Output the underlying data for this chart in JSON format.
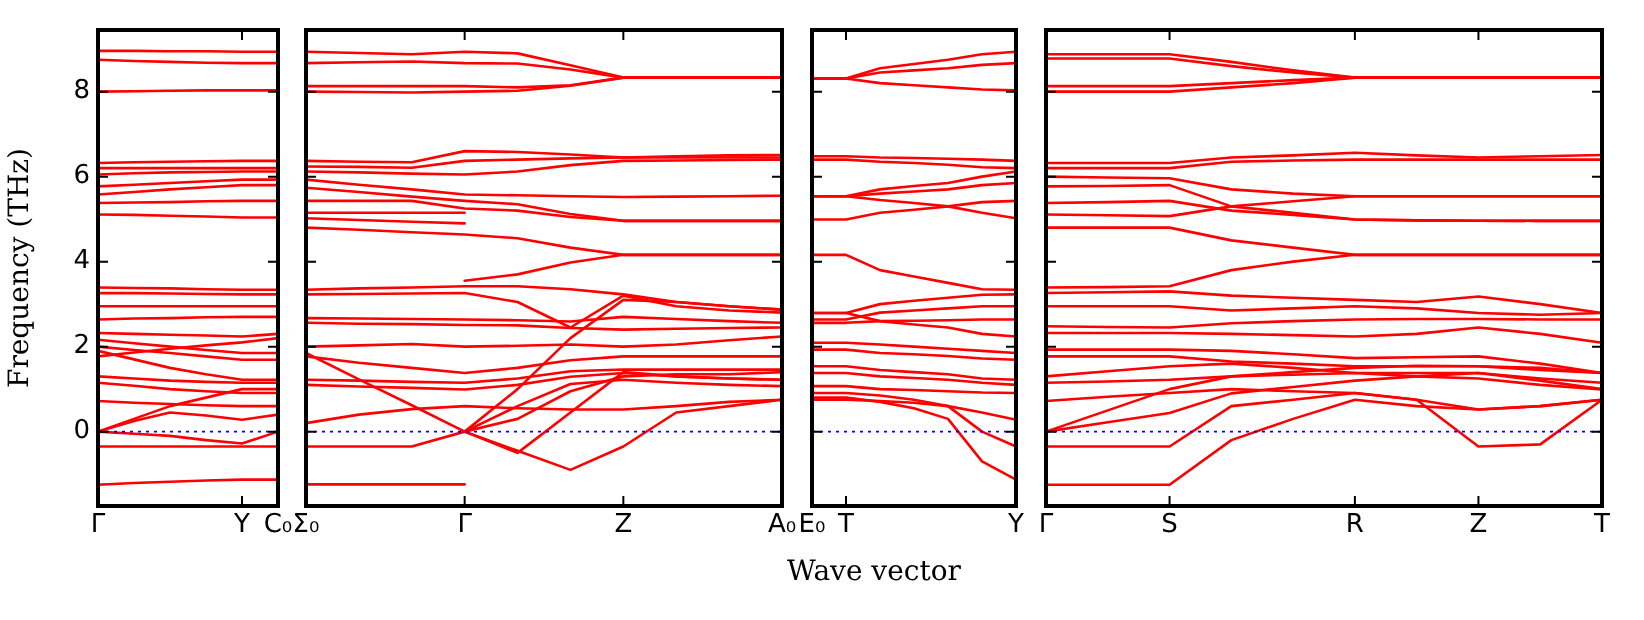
{
  "chart_data": [
    {
      "type": "line",
      "ylabel": "Frequency (THz)",
      "categories": [
        "Γ",
        null,
        null,
        null,
        "Y",
        "C₀"
      ],
      "ylim": [
        -1.75,
        9.45
      ],
      "yticks": [
        0,
        2,
        4,
        6,
        8
      ],
      "grid": false,
      "legend": false,
      "marker": "none",
      "line_style": "solid",
      "ref_lines": [
        {
          "axis": "y",
          "value": 0,
          "color": "#0000ff",
          "line_style": "dotted"
        }
      ],
      "series": [
        {
          "color": "#ff0000",
          "values": [
            8.96,
            8.96,
            8.95,
            8.95,
            8.94,
            8.94
          ]
        },
        {
          "color": "#ff0000",
          "values": [
            8.75,
            8.72,
            8.7,
            8.68,
            8.67,
            8.67
          ]
        },
        {
          "color": "#ff0000",
          "values": [
            8.0,
            8.01,
            8.02,
            8.03,
            8.03,
            8.03
          ]
        },
        {
          "color": "#ff0000",
          "values": [
            6.32,
            6.34,
            6.35,
            6.36,
            6.37,
            6.37
          ]
        },
        {
          "color": "#ff0000",
          "values": [
            6.2,
            6.2,
            6.2,
            6.2,
            6.2,
            6.2
          ]
        },
        {
          "color": "#ff0000",
          "values": [
            6.05,
            6.08,
            6.1,
            6.11,
            6.12,
            6.12
          ]
        },
        {
          "color": "#ff0000",
          "values": [
            5.77,
            5.81,
            5.85,
            5.89,
            5.93,
            5.93
          ]
        },
        {
          "color": "#ff0000",
          "values": [
            5.58,
            5.64,
            5.7,
            5.75,
            5.8,
            5.8
          ]
        },
        {
          "color": "#ff0000",
          "values": [
            5.38,
            5.39,
            5.4,
            5.42,
            5.43,
            5.43
          ]
        },
        {
          "color": "#ff0000",
          "values": [
            5.11,
            5.1,
            5.08,
            5.06,
            5.04,
            5.04
          ]
        },
        {
          "color": "#ff0000",
          "values": [
            3.39,
            3.38,
            3.37,
            3.35,
            3.34,
            3.34
          ]
        },
        {
          "color": "#ff0000",
          "values": [
            3.26,
            3.26,
            3.25,
            3.24,
            3.23,
            3.23
          ]
        },
        {
          "color": "#ff0000",
          "values": [
            2.95,
            2.95,
            2.95,
            2.95,
            2.95,
            2.95
          ]
        },
        {
          "color": "#ff0000",
          "values": [
            2.64,
            2.66,
            2.67,
            2.69,
            2.7,
            2.7
          ]
        },
        {
          "color": "#ff0000",
          "values": [
            2.32,
            2.3,
            2.28,
            2.26,
            2.24,
            2.3
          ]
        },
        {
          "color": "#ff0000",
          "values": [
            2.16,
            2.08,
            2.0,
            1.92,
            1.85,
            1.85
          ]
        },
        {
          "color": "#ff0000",
          "values": [
            2.0,
            1.92,
            1.85,
            1.77,
            1.69,
            1.69
          ]
        },
        {
          "color": "#ff0000",
          "values": [
            1.9,
            1.7,
            1.5,
            1.35,
            1.22,
            1.22
          ]
        },
        {
          "color": "#ff0000",
          "values": [
            1.77,
            1.86,
            1.95,
            2.03,
            2.1,
            2.2
          ]
        },
        {
          "color": "#ff0000",
          "values": [
            1.3,
            1.25,
            1.2,
            1.17,
            1.15,
            1.15
          ]
        },
        {
          "color": "#ff0000",
          "values": [
            1.15,
            1.08,
            1.0,
            0.95,
            0.91,
            0.91
          ]
        },
        {
          "color": "#ff0000",
          "values": [
            0.72,
            0.68,
            0.65,
            0.62,
            0.6,
            0.6
          ]
        },
        {
          "color": "#ff0000",
          "values": [
            0,
            0.3,
            0.6,
            0.8,
            1.0,
            1.0
          ]
        },
        {
          "color": "#ff0000",
          "values": [
            0,
            0.25,
            0.45,
            0.38,
            0.28,
            0.4
          ]
        },
        {
          "color": "#ff0000",
          "values": [
            0,
            -0.05,
            -0.1,
            -0.2,
            -0.28,
            0
          ]
        },
        {
          "color": "#ff0000",
          "values": [
            -0.35,
            -0.35,
            -0.35,
            -0.35,
            -0.35,
            -0.35
          ]
        },
        {
          "color": "#ff0000",
          "values": [
            -1.25,
            -1.21,
            -1.18,
            -1.15,
            -1.13,
            -1.13
          ]
        }
      ]
    },
    {
      "type": "line",
      "tick_labels": "x",
      "categories": [
        "Σ₀",
        null,
        null,
        "Γ",
        null,
        null,
        "Z",
        null,
        null,
        "A₀"
      ],
      "ylim": [
        -1.75,
        9.45
      ],
      "yticks": [
        0,
        2,
        4,
        6,
        8
      ],
      "grid": false,
      "legend": false,
      "marker": "none",
      "line_style": "solid",
      "ref_lines": [
        {
          "axis": "y",
          "value": 0,
          "color": "#0000ff",
          "line_style": "dotted"
        }
      ],
      "series": [
        {
          "color": "#ff0000",
          "values": [
            8.94,
            8.91,
            8.88,
            8.94,
            8.9,
            8.62,
            8.33,
            8.33,
            8.33,
            8.33
          ]
        },
        {
          "color": "#ff0000",
          "values": [
            8.67,
            8.69,
            8.71,
            8.67,
            8.66,
            8.52,
            8.33,
            8.33,
            8.33,
            8.33
          ]
        },
        {
          "color": "#ff0000",
          "values": [
            8.13,
            8.13,
            8.13,
            8.13,
            8.1,
            8.15,
            8.33,
            8.33,
            8.33,
            8.33
          ]
        },
        {
          "color": "#ff0000",
          "values": [
            8.0,
            7.99,
            7.98,
            8.0,
            8.02,
            8.14,
            8.33,
            8.33,
            8.33,
            8.33
          ]
        },
        {
          "color": "#ff0000",
          "values": [
            6.37,
            6.35,
            6.34,
            6.6,
            6.58,
            6.52,
            6.45,
            6.48,
            6.5,
            6.51
          ]
        },
        {
          "color": "#ff0000",
          "values": [
            6.24,
            6.23,
            6.21,
            6.37,
            6.4,
            6.43,
            6.45,
            6.45,
            6.45,
            6.45
          ]
        },
        {
          "color": "#ff0000",
          "values": [
            6.12,
            6.1,
            6.07,
            6.05,
            6.12,
            6.27,
            6.37,
            6.38,
            6.39,
            6.4
          ]
        },
        {
          "color": "#ff0000",
          "values": [
            5.93,
            5.81,
            5.7,
            5.58,
            5.56,
            5.54,
            5.52,
            5.53,
            5.54,
            5.55
          ]
        },
        {
          "color": "#ff0000",
          "values": [
            5.74,
            5.64,
            5.53,
            5.43,
            5.35,
            5.12,
            4.96,
            4.96,
            4.96,
            4.96
          ]
        },
        {
          "color": "#ff0000",
          "values": [
            5.43,
            5.43,
            5.43,
            5.25,
            5.2,
            5.05,
            4.96,
            4.96,
            4.96,
            4.96
          ]
        },
        {
          "color": "#ff0000",
          "values": [
            5.15,
            5.15,
            5.15,
            5.15,
            null,
            null,
            null,
            null,
            null,
            null
          ]
        },
        {
          "color": "#ff0000",
          "values": [
            5.02,
            4.98,
            4.94,
            4.9,
            null,
            null,
            null,
            null,
            null,
            null
          ]
        },
        {
          "color": "#ff0000",
          "values": [
            4.8,
            4.75,
            4.69,
            4.64,
            4.55,
            4.33,
            4.16,
            4.16,
            4.16,
            4.16
          ]
        },
        {
          "color": "#ff0000",
          "values": [
            null,
            null,
            null,
            3.55,
            3.7,
            3.98,
            4.16,
            4.16,
            4.16,
            4.16
          ]
        },
        {
          "color": "#ff0000",
          "values": [
            3.34,
            3.37,
            3.39,
            3.42,
            3.42,
            3.35,
            3.23,
            3.05,
            2.95,
            2.87
          ]
        },
        {
          "color": "#ff0000",
          "values": [
            3.23,
            3.24,
            3.25,
            3.26,
            3.05,
            2.45,
            3.2,
            2.95,
            2.85,
            2.8
          ]
        },
        {
          "color": "#ff0000",
          "values": [
            2.67,
            2.66,
            2.65,
            2.64,
            2.62,
            2.59,
            2.7,
            2.65,
            2.6,
            2.56
          ]
        },
        {
          "color": "#ff0000",
          "values": [
            2.56,
            2.54,
            2.53,
            2.51,
            2.5,
            2.44,
            2.4,
            2.42,
            2.44,
            2.45
          ]
        },
        {
          "color": "#ff0000",
          "values": [
            2.0,
            2.03,
            2.06,
            2.0,
            2.02,
            2.05,
            2.0,
            2.05,
            2.15,
            2.24
          ]
        },
        {
          "color": "#ff0000",
          "values": [
            1.85,
            1.23,
            0.62,
            0,
            1.0,
            2.2,
            3.1,
            3.05,
            2.95,
            2.87
          ]
        },
        {
          "color": "#ff0000",
          "values": [
            1.77,
            1.62,
            1.5,
            1.38,
            1.5,
            1.68,
            1.77,
            1.77,
            1.77,
            1.77
          ]
        },
        {
          "color": "#ff0000",
          "values": [
            1.22,
            1.2,
            1.17,
            1.15,
            1.25,
            1.42,
            1.46,
            1.46,
            1.46,
            1.46
          ]
        },
        {
          "color": "#ff0000",
          "values": [
            1.1,
            1.06,
            1.03,
            0.99,
            1.1,
            1.29,
            1.38,
            1.3,
            1.25,
            1.22
          ]
        },
        {
          "color": "#ff0000",
          "values": [
            0.2,
            0.4,
            0.53,
            0.6,
            0.55,
            0.52,
            0.52,
            0.6,
            0.7,
            0.75
          ]
        },
        {
          "color": "#ff0000",
          "values": [
            -0.35,
            -0.35,
            -0.35,
            0,
            -0.5,
            0.45,
            1.4,
            1.3,
            1.25,
            1.22
          ]
        },
        {
          "color": "#ff0000",
          "values": [
            -1.24,
            -1.24,
            -1.24,
            -1.24,
            null,
            null,
            null,
            null,
            null,
            null
          ]
        },
        {
          "color": "#ff0000",
          "values": [
            null,
            null,
            null,
            0,
            0.6,
            1.12,
            1.22,
            1.15,
            1.1,
            1.07
          ]
        },
        {
          "color": "#ff0000",
          "values": [
            null,
            null,
            null,
            0,
            -0.45,
            -0.9,
            -0.35,
            0.45,
            0.6,
            0.75
          ]
        },
        {
          "color": "#ff0000",
          "values": [
            null,
            null,
            null,
            0,
            0.3,
            0.95,
            1.3,
            1.35,
            1.35,
            1.4
          ]
        }
      ]
    },
    {
      "type": "line",
      "tick_labels": "x",
      "xlabel": "Wave vector",
      "categories": [
        "E₀",
        "T",
        null,
        null,
        null,
        null,
        "Y"
      ],
      "ylim": [
        -1.75,
        9.45
      ],
      "yticks": [
        0,
        2,
        4,
        6,
        8
      ],
      "grid": false,
      "legend": false,
      "marker": "none",
      "line_style": "solid",
      "ref_lines": [
        {
          "axis": "y",
          "value": 0,
          "color": "#0000ff",
          "line_style": "dotted"
        }
      ],
      "series": [
        {
          "color": "#ff0000",
          "values": [
            8.31,
            8.31,
            8.55,
            8.65,
            8.75,
            8.88,
            8.94
          ]
        },
        {
          "color": "#ff0000",
          "values": [
            8.31,
            8.31,
            8.45,
            8.5,
            8.55,
            8.63,
            8.67
          ]
        },
        {
          "color": "#ff0000",
          "values": [
            8.31,
            8.31,
            8.2,
            8.15,
            8.1,
            8.05,
            8.03
          ]
        },
        {
          "color": "#ff0000",
          "values": [
            6.48,
            6.48,
            6.45,
            6.44,
            6.42,
            6.4,
            6.37
          ]
        },
        {
          "color": "#ff0000",
          "values": [
            6.4,
            6.4,
            6.35,
            6.32,
            6.28,
            6.22,
            6.2
          ]
        },
        {
          "color": "#ff0000",
          "values": [
            5.54,
            5.54,
            5.7,
            5.78,
            5.85,
            6.0,
            6.12
          ]
        },
        {
          "color": "#ff0000",
          "values": [
            5.54,
            5.54,
            5.6,
            5.65,
            5.7,
            5.8,
            5.85
          ]
        },
        {
          "color": "#ff0000",
          "values": [
            4.99,
            4.99,
            5.15,
            5.22,
            5.3,
            5.4,
            5.43
          ]
        },
        {
          "color": "#ff0000",
          "values": [
            5.54,
            5.54,
            5.45,
            5.38,
            5.3,
            5.15,
            5.02
          ]
        },
        {
          "color": "#ff0000",
          "values": [
            4.16,
            4.16,
            3.8,
            3.65,
            3.5,
            3.35,
            3.34
          ]
        },
        {
          "color": "#ff0000",
          "values": [
            2.79,
            2.79,
            3.0,
            3.08,
            3.15,
            3.22,
            3.23
          ]
        },
        {
          "color": "#ff0000",
          "values": [
            2.64,
            2.64,
            2.8,
            2.85,
            2.9,
            2.95,
            2.95
          ]
        },
        {
          "color": "#ff0000",
          "values": [
            2.56,
            2.56,
            2.6,
            2.61,
            2.62,
            2.64,
            2.64
          ]
        },
        {
          "color": "#ff0000",
          "values": [
            2.79,
            2.79,
            2.6,
            2.52,
            2.45,
            2.3,
            2.24
          ]
        },
        {
          "color": "#ff0000",
          "values": [
            2.09,
            2.09,
            2.05,
            2.0,
            1.95,
            1.9,
            1.85
          ]
        },
        {
          "color": "#ff0000",
          "values": [
            1.93,
            1.93,
            1.85,
            1.82,
            1.78,
            1.72,
            1.69
          ]
        },
        {
          "color": "#ff0000",
          "values": [
            1.54,
            1.54,
            1.45,
            1.4,
            1.35,
            1.25,
            1.22
          ]
        },
        {
          "color": "#ff0000",
          "values": [
            1.38,
            1.38,
            1.3,
            1.26,
            1.22,
            1.15,
            1.1
          ]
        },
        {
          "color": "#ff0000",
          "values": [
            1.07,
            1.07,
            1.0,
            0.98,
            0.95,
            0.92,
            0.91
          ]
        },
        {
          "color": "#ff0000",
          "values": [
            0.91,
            0.91,
            0.85,
            0.75,
            0.6,
            0.45,
            0.28
          ]
        },
        {
          "color": "#ff0000",
          "values": [
            0.75,
            0.75,
            0.72,
            0.68,
            0.6,
            0.0,
            -0.35
          ]
        },
        {
          "color": "#ff0000",
          "values": [
            0.8,
            0.8,
            0.7,
            0.55,
            0.3,
            -0.7,
            -1.13
          ]
        }
      ]
    },
    {
      "type": "line",
      "tick_labels": "x",
      "categories": [
        "Γ",
        null,
        "S",
        null,
        null,
        "R",
        null,
        "Z",
        null,
        "T"
      ],
      "ylim": [
        -1.75,
        9.45
      ],
      "yticks": [
        0,
        2,
        4,
        6,
        8
      ],
      "grid": false,
      "legend": false,
      "marker": "none",
      "line_style": "solid",
      "ref_lines": [
        {
          "axis": "y",
          "value": 0,
          "color": "#0000ff",
          "line_style": "dotted"
        }
      ],
      "series": [
        {
          "color": "#ff0000",
          "values": [
            8.88,
            8.88,
            8.88,
            8.7,
            8.5,
            8.33,
            8.33,
            8.33,
            8.33,
            8.33
          ]
        },
        {
          "color": "#ff0000",
          "values": [
            8.78,
            8.78,
            8.78,
            8.6,
            8.45,
            8.33,
            8.33,
            8.33,
            8.33,
            8.33
          ]
        },
        {
          "color": "#ff0000",
          "values": [
            8.13,
            8.13,
            8.13,
            8.2,
            8.27,
            8.33,
            8.33,
            8.33,
            8.33,
            8.33
          ]
        },
        {
          "color": "#ff0000",
          "values": [
            8.0,
            8.0,
            8.0,
            8.1,
            8.2,
            8.33,
            8.33,
            8.33,
            8.33,
            8.33
          ]
        },
        {
          "color": "#ff0000",
          "values": [
            6.32,
            6.32,
            6.32,
            6.45,
            6.5,
            6.56,
            6.5,
            6.45,
            6.48,
            6.51
          ]
        },
        {
          "color": "#ff0000",
          "values": [
            6.2,
            6.2,
            6.2,
            6.35,
            6.38,
            6.4,
            6.4,
            6.4,
            6.4,
            6.4
          ]
        },
        {
          "color": "#ff0000",
          "values": [
            6.0,
            5.98,
            5.96,
            5.7,
            5.6,
            5.54,
            5.54,
            5.54,
            5.54,
            5.54
          ]
        },
        {
          "color": "#ff0000",
          "values": [
            5.77,
            5.78,
            5.8,
            5.3,
            5.15,
            4.99,
            4.97,
            4.96,
            4.96,
            4.96
          ]
        },
        {
          "color": "#ff0000",
          "values": [
            5.38,
            5.4,
            5.43,
            5.2,
            5.1,
            4.99,
            4.97,
            4.96,
            4.96,
            4.96
          ]
        },
        {
          "color": "#ff0000",
          "values": [
            5.11,
            5.09,
            5.07,
            5.3,
            5.42,
            5.54,
            5.54,
            5.54,
            5.54,
            5.54
          ]
        },
        {
          "color": "#ff0000",
          "values": [
            4.8,
            4.8,
            4.8,
            4.5,
            4.33,
            4.16,
            4.16,
            4.16,
            4.16,
            4.16
          ]
        },
        {
          "color": "#ff0000",
          "values": [
            3.39,
            3.4,
            3.42,
            3.8,
            4.0,
            4.16,
            4.16,
            4.16,
            4.16,
            4.16
          ]
        },
        {
          "color": "#ff0000",
          "values": [
            3.26,
            3.28,
            3.3,
            3.2,
            3.15,
            3.1,
            3.05,
            3.18,
            3.0,
            2.79
          ]
        },
        {
          "color": "#ff0000",
          "values": [
            2.95,
            2.95,
            2.95,
            2.85,
            2.9,
            2.95,
            2.9,
            2.79,
            2.75,
            2.79
          ]
        },
        {
          "color": "#ff0000",
          "values": [
            2.48,
            2.46,
            2.45,
            2.55,
            2.6,
            2.64,
            2.65,
            2.65,
            2.64,
            2.64
          ]
        },
        {
          "color": "#ff0000",
          "values": [
            2.32,
            2.32,
            2.32,
            2.3,
            2.27,
            2.24,
            2.3,
            2.45,
            2.3,
            2.09
          ]
        },
        {
          "color": "#ff0000",
          "values": [
            1.93,
            1.93,
            1.93,
            1.9,
            1.82,
            1.73,
            1.75,
            1.77,
            1.6,
            1.38
          ]
        },
        {
          "color": "#ff0000",
          "values": [
            1.77,
            1.77,
            1.77,
            1.65,
            1.6,
            1.54,
            1.54,
            1.54,
            1.5,
            1.38
          ]
        },
        {
          "color": "#ff0000",
          "values": [
            1.3,
            1.42,
            1.54,
            1.6,
            1.5,
            1.38,
            1.38,
            1.38,
            1.25,
            1.15
          ]
        },
        {
          "color": "#ff0000",
          "values": [
            1.15,
            1.18,
            1.22,
            1.3,
            1.34,
            1.38,
            1.3,
            1.25,
            1.1,
            0.99
          ]
        },
        {
          "color": "#ff0000",
          "values": [
            0.72,
            0.82,
            0.91,
            1.0,
            0.95,
            0.91,
            0.75,
            0.52,
            0.6,
            0.75
          ]
        },
        {
          "color": "#ff0000",
          "values": [
            0,
            0.22,
            0.44,
            0.9,
            1.05,
            1.2,
            1.3,
            1.38,
            1.2,
            1.0
          ]
        },
        {
          "color": "#ff0000",
          "values": [
            0,
            0.5,
            1.0,
            1.3,
            1.4,
            1.5,
            1.55,
            1.54,
            1.45,
            1.38
          ]
        },
        {
          "color": "#ff0000",
          "values": [
            -0.35,
            -0.35,
            -0.35,
            0.6,
            0.75,
            0.91,
            0.75,
            -0.35,
            -0.3,
            0.75
          ]
        },
        {
          "color": "#ff0000",
          "values": [
            -1.25,
            -1.25,
            -1.25,
            -0.2,
            0.3,
            0.75,
            0.6,
            0.52,
            0.6,
            0.75
          ]
        }
      ]
    }
  ]
}
